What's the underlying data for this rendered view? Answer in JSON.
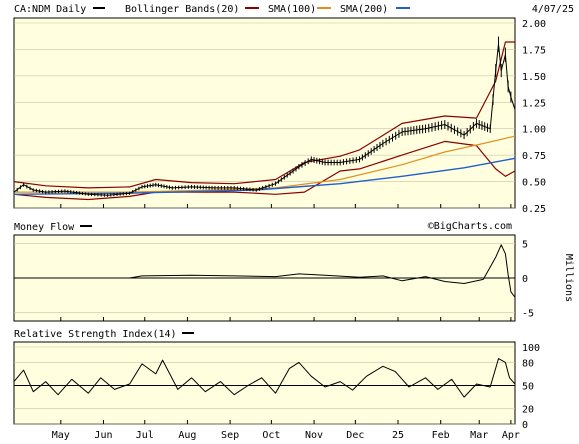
{
  "header": {
    "symbol_label": "CA:NDM Daily",
    "date": "4/07/25",
    "legend": [
      {
        "label": "Bollinger Bands(20)",
        "color": "#8b0000"
      },
      {
        "label": "SMA(100)",
        "color": "#e09020"
      },
      {
        "label": "SMA(200)",
        "color": "#1e5fd0"
      }
    ]
  },
  "watermark": "©BigCharts.com",
  "x_axis": {
    "labels": [
      "May",
      "Jun",
      "Jul",
      "Aug",
      "Sep",
      "Oct",
      "Nov",
      "Dec",
      "25",
      "Feb",
      "Mar",
      "Apr"
    ]
  },
  "colors": {
    "panel_bg": "#ffffe0",
    "price": "#000000",
    "bollinger": "#8b0000",
    "sma100": "#e09020",
    "sma200": "#1e5fd0"
  },
  "chart_data": [
    {
      "type": "line",
      "panel": "price",
      "y_ticks": [
        "2.00",
        "1.75",
        "1.50",
        "1.25",
        "1.00",
        "0.75",
        "0.50",
        "0.25"
      ],
      "ylim": [
        0.25,
        2.0
      ],
      "x_start": "2024-04-08",
      "x_end": "2025-04-07",
      "series": [
        {
          "name": "CA:NDM Daily",
          "points": [
            [
              "2024-04-08",
              0.4
            ],
            [
              "2024-04-15",
              0.47
            ],
            [
              "2024-04-22",
              0.42
            ],
            [
              "2024-05-01",
              0.4
            ],
            [
              "2024-05-15",
              0.41
            ],
            [
              "2024-06-01",
              0.38
            ],
            [
              "2024-06-15",
              0.37
            ],
            [
              "2024-07-01",
              0.39
            ],
            [
              "2024-07-10",
              0.45
            ],
            [
              "2024-07-20",
              0.47
            ],
            [
              "2024-08-01",
              0.44
            ],
            [
              "2024-08-15",
              0.45
            ],
            [
              "2024-09-01",
              0.44
            ],
            [
              "2024-09-15",
              0.44
            ],
            [
              "2024-10-01",
              0.42
            ],
            [
              "2024-10-15",
              0.48
            ],
            [
              "2024-11-01",
              0.64
            ],
            [
              "2024-11-10",
              0.71
            ],
            [
              "2024-11-20",
              0.68
            ],
            [
              "2024-12-01",
              0.68
            ],
            [
              "2024-12-15",
              0.71
            ],
            [
              "2025-01-01",
              0.86
            ],
            [
              "2025-01-15",
              0.97
            ],
            [
              "2025-02-01",
              1.0
            ],
            [
              "2025-02-15",
              1.04
            ],
            [
              "2025-03-01",
              0.94
            ],
            [
              "2025-03-10",
              1.05
            ],
            [
              "2025-03-20",
              1.0
            ],
            [
              "2025-03-24",
              1.55
            ],
            [
              "2025-03-26",
              1.8
            ],
            [
              "2025-03-28",
              1.55
            ],
            [
              "2025-03-31",
              1.7
            ],
            [
              "2025-04-02",
              1.4
            ],
            [
              "2025-04-04",
              1.3
            ],
            [
              "2025-04-07",
              1.18
            ]
          ]
        },
        {
          "name": "Bollinger Bands(20)",
          "upper": [
            [
              "2024-04-08",
              0.5
            ],
            [
              "2024-05-01",
              0.46
            ],
            [
              "2024-06-01",
              0.44
            ],
            [
              "2024-07-01",
              0.45
            ],
            [
              "2024-07-20",
              0.52
            ],
            [
              "2024-08-15",
              0.49
            ],
            [
              "2024-09-15",
              0.48
            ],
            [
              "2024-10-15",
              0.52
            ],
            [
              "2024-11-05",
              0.68
            ],
            [
              "2024-12-01",
              0.74
            ],
            [
              "2024-12-15",
              0.8
            ],
            [
              "2025-01-15",
              1.05
            ],
            [
              "2025-02-15",
              1.12
            ],
            [
              "2025-03-10",
              1.1
            ],
            [
              "2025-03-24",
              1.45
            ],
            [
              "2025-03-31",
              1.82
            ],
            [
              "2025-04-07",
              1.82
            ]
          ],
          "lower": [
            [
              "2024-04-08",
              0.38
            ],
            [
              "2024-05-01",
              0.35
            ],
            [
              "2024-06-01",
              0.33
            ],
            [
              "2024-07-01",
              0.36
            ],
            [
              "2024-07-20",
              0.4
            ],
            [
              "2024-08-15",
              0.4
            ],
            [
              "2024-09-15",
              0.4
            ],
            [
              "2024-10-15",
              0.38
            ],
            [
              "2024-11-05",
              0.4
            ],
            [
              "2024-12-01",
              0.6
            ],
            [
              "2024-12-15",
              0.62
            ],
            [
              "2025-01-15",
              0.75
            ],
            [
              "2025-02-15",
              0.88
            ],
            [
              "2025-03-10",
              0.84
            ],
            [
              "2025-03-24",
              0.62
            ],
            [
              "2025-03-31",
              0.55
            ],
            [
              "2025-04-07",
              0.6
            ]
          ]
        },
        {
          "name": "SMA(100)",
          "points": [
            [
              "2024-04-08",
              0.4
            ],
            [
              "2024-07-01",
              0.4
            ],
            [
              "2024-09-01",
              0.42
            ],
            [
              "2024-10-15",
              0.44
            ],
            [
              "2024-12-01",
              0.52
            ],
            [
              "2025-01-15",
              0.66
            ],
            [
              "2025-02-15",
              0.78
            ],
            [
              "2025-03-15",
              0.86
            ],
            [
              "2025-04-07",
              0.93
            ]
          ]
        },
        {
          "name": "SMA(200)",
          "points": [
            [
              "2024-04-08",
              0.38
            ],
            [
              "2024-07-01",
              0.39
            ],
            [
              "2024-10-01",
              0.42
            ],
            [
              "2024-12-01",
              0.48
            ],
            [
              "2025-01-15",
              0.55
            ],
            [
              "2025-03-01",
              0.63
            ],
            [
              "2025-04-07",
              0.72
            ]
          ]
        }
      ]
    },
    {
      "type": "line",
      "panel": "money_flow",
      "title": "Money Flow",
      "ylabel": "Millions",
      "y_ticks": [
        "5",
        "0",
        "-5"
      ],
      "ylim": [
        -5.5,
        5.5
      ],
      "series": [
        {
          "name": "Money Flow",
          "points": [
            [
              "2024-04-08",
              0.0
            ],
            [
              "2024-07-01",
              0.0
            ],
            [
              "2024-07-10",
              0.3
            ],
            [
              "2024-08-15",
              0.4
            ],
            [
              "2024-09-15",
              0.3
            ],
            [
              "2024-10-15",
              0.2
            ],
            [
              "2024-11-01",
              0.6
            ],
            [
              "2024-11-20",
              0.4
            ],
            [
              "2024-12-15",
              0.1
            ],
            [
              "2025-01-01",
              0.3
            ],
            [
              "2025-01-15",
              -0.4
            ],
            [
              "2025-02-01",
              0.2
            ],
            [
              "2025-02-15",
              -0.5
            ],
            [
              "2025-03-01",
              -0.8
            ],
            [
              "2025-03-15",
              -0.2
            ],
            [
              "2025-03-24",
              3.0
            ],
            [
              "2025-03-28",
              4.8
            ],
            [
              "2025-03-31",
              3.5
            ],
            [
              "2025-04-02",
              0.5
            ],
            [
              "2025-04-04",
              -2.0
            ],
            [
              "2025-04-07",
              -2.8
            ]
          ]
        }
      ]
    },
    {
      "type": "line",
      "panel": "rsi",
      "title": "Relative Strength Index(14)",
      "y_ticks": [
        "100",
        "80",
        "50",
        "20",
        "0"
      ],
      "ylim": [
        0,
        100
      ],
      "series": [
        {
          "name": "Relative Strength Index(14)",
          "points": [
            [
              "2024-04-08",
              55
            ],
            [
              "2024-04-15",
              70
            ],
            [
              "2024-04-22",
              42
            ],
            [
              "2024-05-01",
              55
            ],
            [
              "2024-05-10",
              38
            ],
            [
              "2024-05-20",
              58
            ],
            [
              "2024-06-01",
              40
            ],
            [
              "2024-06-10",
              60
            ],
            [
              "2024-06-20",
              45
            ],
            [
              "2024-07-01",
              52
            ],
            [
              "2024-07-10",
              78
            ],
            [
              "2024-07-20",
              65
            ],
            [
              "2024-07-25",
              83
            ],
            [
              "2024-08-05",
              45
            ],
            [
              "2024-08-15",
              60
            ],
            [
              "2024-08-25",
              42
            ],
            [
              "2024-09-05",
              55
            ],
            [
              "2024-09-15",
              38
            ],
            [
              "2024-09-25",
              50
            ],
            [
              "2024-10-05",
              60
            ],
            [
              "2024-10-15",
              40
            ],
            [
              "2024-10-25",
              72
            ],
            [
              "2024-11-01",
              80
            ],
            [
              "2024-11-10",
              62
            ],
            [
              "2024-11-20",
              48
            ],
            [
              "2024-12-01",
              55
            ],
            [
              "2024-12-10",
              44
            ],
            [
              "2024-12-20",
              62
            ],
            [
              "2025-01-01",
              75
            ],
            [
              "2025-01-10",
              68
            ],
            [
              "2025-01-20",
              48
            ],
            [
              "2025-02-01",
              60
            ],
            [
              "2025-02-10",
              45
            ],
            [
              "2025-02-20",
              58
            ],
            [
              "2025-03-01",
              35
            ],
            [
              "2025-03-10",
              52
            ],
            [
              "2025-03-20",
              48
            ],
            [
              "2025-03-26",
              85
            ],
            [
              "2025-03-31",
              80
            ],
            [
              "2025-04-03",
              60
            ],
            [
              "2025-04-07",
              52
            ]
          ]
        }
      ]
    }
  ]
}
